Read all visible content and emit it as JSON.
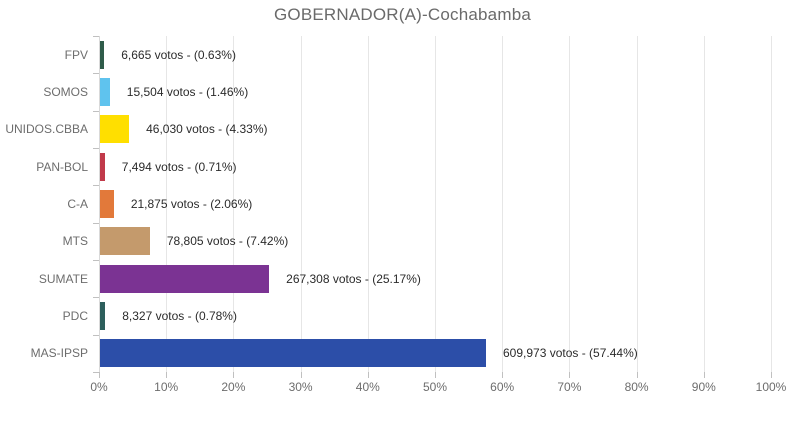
{
  "chart_data": {
    "type": "bar",
    "orientation": "horizontal",
    "title": "GOBERNADOR(A)-Cochabamba",
    "categories": [
      "FPV",
      "SOMOS",
      "UNIDOS.CBBA",
      "PAN-BOL",
      "C-A",
      "MTS",
      "SUMATE",
      "PDC",
      "MAS-IPSP"
    ],
    "values_percent": [
      0.63,
      1.46,
      4.33,
      0.71,
      2.06,
      7.42,
      25.17,
      0.78,
      57.44
    ],
    "votes": [
      6665,
      15504,
      46030,
      7494,
      21875,
      78805,
      267308,
      8327,
      609973
    ],
    "data_labels": [
      "6,665 votos - (0.63%)",
      "15,504 votos - (1.46%)",
      "46,030 votos - (4.33%)",
      "7,494 votos - (0.71%)",
      "21,875 votos - (2.06%)",
      "78,805 votos - (7.42%)",
      "267,308 votos - (25.17%)",
      "8,327 votos - (0.78%)",
      "609,973 votos - (57.44%)"
    ],
    "bar_colors": [
      "#2f5c4a",
      "#5fc3ee",
      "#ffdf00",
      "#c13a4a",
      "#e2793a",
      "#c49a6c",
      "#7b3393",
      "#2d5f5c",
      "#2c4ea8"
    ],
    "x_tick_labels": [
      "0%",
      "10%",
      "20%",
      "30%",
      "40%",
      "50%",
      "60%",
      "70%",
      "80%",
      "90%",
      "100%"
    ],
    "xlim": [
      0,
      100
    ],
    "grid": true,
    "legend": false,
    "layout": {
      "grid_color": "#e6e6e6",
      "label_color": "#6d6d6d",
      "value_label_color": "#2b2b2b",
      "title_color": "#6a6a6a"
    }
  }
}
